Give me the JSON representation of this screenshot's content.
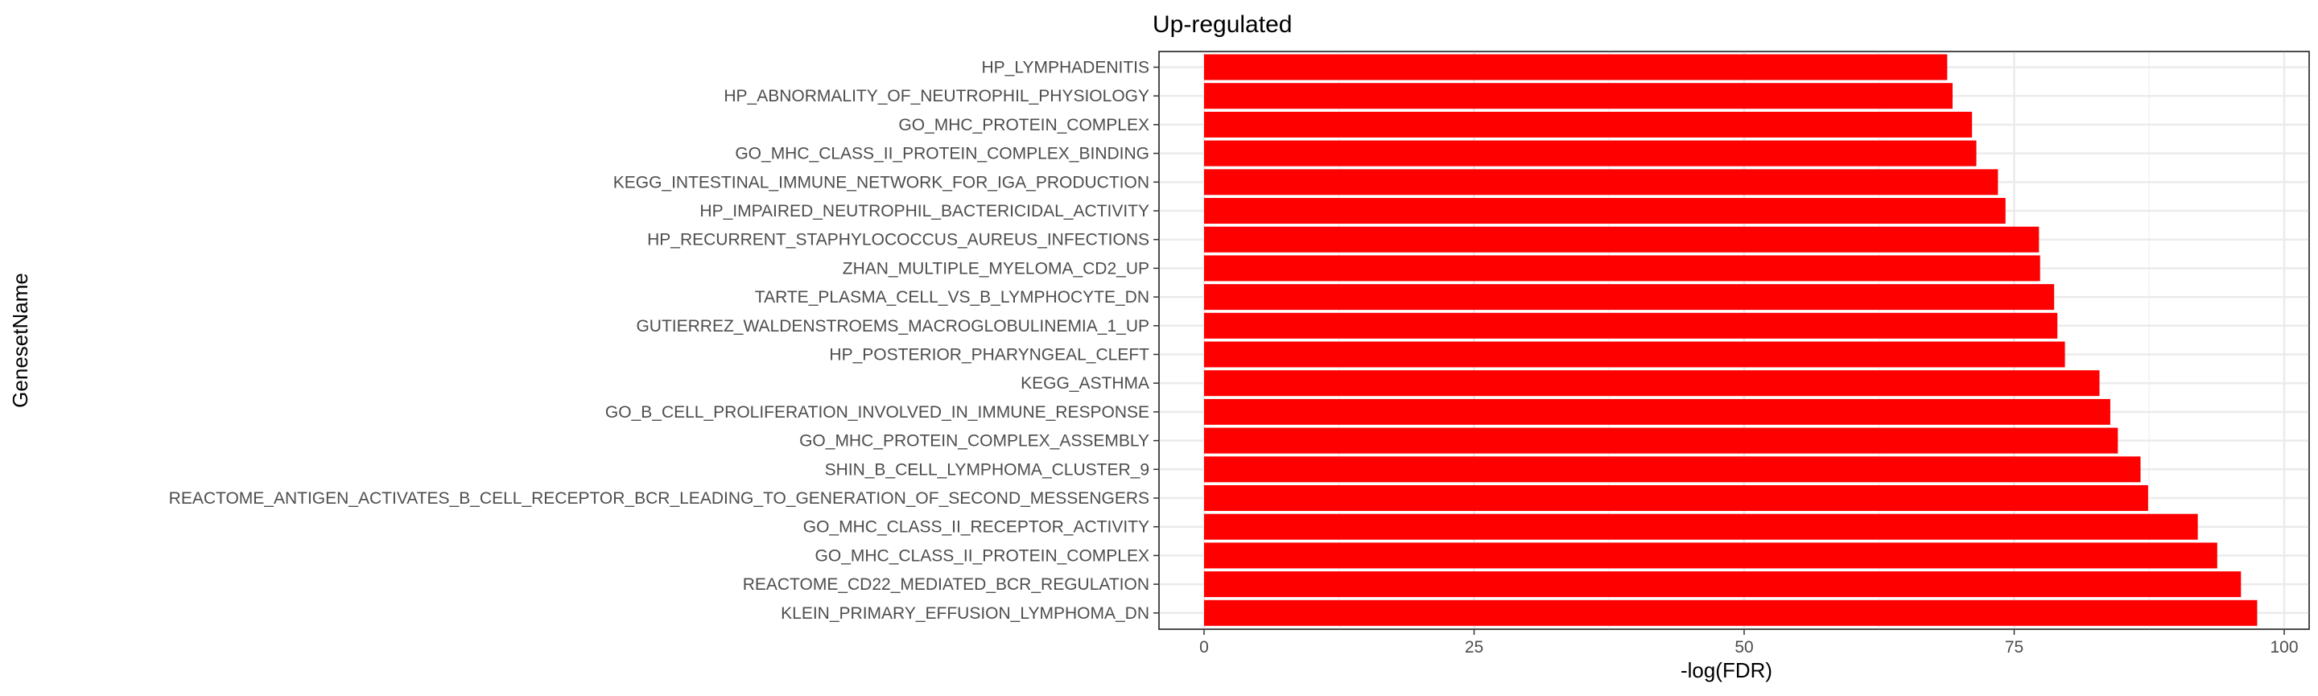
{
  "chart_data": {
    "type": "bar",
    "orientation": "horizontal",
    "title": "Up-regulated",
    "xlabel": "-log(FDR)",
    "ylabel": "GenesetName",
    "xlim": [
      0,
      100
    ],
    "x_ticks": [
      0,
      25,
      50,
      75,
      100
    ],
    "grid": true,
    "bar_color": "#ff0000",
    "categories": [
      "HP_LYMPHADENITIS",
      "HP_ABNORMALITY_OF_NEUTROPHIL_PHYSIOLOGY",
      "GO_MHC_PROTEIN_COMPLEX",
      "GO_MHC_CLASS_II_PROTEIN_COMPLEX_BINDING",
      "KEGG_INTESTINAL_IMMUNE_NETWORK_FOR_IGA_PRODUCTION",
      "HP_IMPAIRED_NEUTROPHIL_BACTERICIDAL_ACTIVITY",
      "HP_RECURRENT_STAPHYLOCOCCUS_AUREUS_INFECTIONS",
      "ZHAN_MULTIPLE_MYELOMA_CD2_UP",
      "TARTE_PLASMA_CELL_VS_B_LYMPHOCYTE_DN",
      "GUTIERREZ_WALDENSTROEMS_MACROGLOBULINEMIA_1_UP",
      "HP_POSTERIOR_PHARYNGEAL_CLEFT",
      "KEGG_ASTHMA",
      "GO_B_CELL_PROLIFERATION_INVOLVED_IN_IMMUNE_RESPONSE",
      "GO_MHC_PROTEIN_COMPLEX_ASSEMBLY",
      "SHIN_B_CELL_LYMPHOMA_CLUSTER_9",
      "REACTOME_ANTIGEN_ACTIVATES_B_CELL_RECEPTOR_BCR_LEADING_TO_GENERATION_OF_SECOND_MESSENGERS",
      "GO_MHC_CLASS_II_RECEPTOR_ACTIVITY",
      "GO_MHC_CLASS_II_PROTEIN_COMPLEX",
      "REACTOME_CD22_MEDIATED_BCR_REGULATION",
      "KLEIN_PRIMARY_EFFUSION_LYMPHOMA_DN"
    ],
    "values": [
      68.8,
      69.3,
      71.1,
      71.5,
      73.5,
      74.2,
      77.3,
      77.4,
      78.7,
      79.0,
      79.7,
      82.9,
      83.9,
      84.6,
      86.7,
      87.4,
      92.0,
      93.8,
      96.0,
      97.5
    ]
  }
}
